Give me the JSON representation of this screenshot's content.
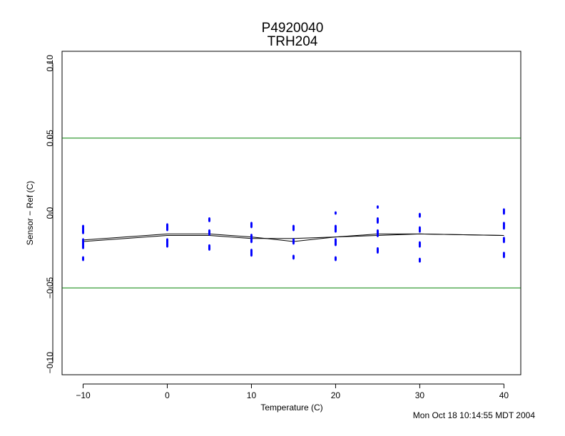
{
  "chart_data": {
    "type": "scatter",
    "title": "P4920040",
    "subtitle": "TRH204",
    "xlabel": "Temperature (C)",
    "ylabel": "Sensor − Ref (C)",
    "xlim": [
      -12.5,
      42
    ],
    "ylim": [
      -0.108,
      0.108
    ],
    "x_ticks": [
      -10,
      0,
      10,
      20,
      30,
      40
    ],
    "x_tick_labels": [
      "−10",
      "0",
      "10",
      "20",
      "30",
      "40"
    ],
    "y_ticks": [
      -0.1,
      -0.05,
      0.0,
      0.05,
      0.1
    ],
    "y_tick_labels": [
      "−0.10",
      "−0.05",
      "0.0",
      "0.05",
      "0.10"
    ],
    "grid": false,
    "reference_lines": [
      {
        "y": 0.05,
        "color": "#008000"
      },
      {
        "y": -0.05,
        "color": "#008000"
      }
    ],
    "points": [
      {
        "x": -10,
        "y": -0.009
      },
      {
        "x": -10,
        "y": -0.01
      },
      {
        "x": -10,
        "y": -0.011
      },
      {
        "x": -10,
        "y": -0.012
      },
      {
        "x": -10,
        "y": -0.013
      },
      {
        "x": -10,
        "y": -0.018
      },
      {
        "x": -10,
        "y": -0.019
      },
      {
        "x": -10,
        "y": -0.02
      },
      {
        "x": -10,
        "y": -0.021
      },
      {
        "x": -10,
        "y": -0.022
      },
      {
        "x": -10,
        "y": -0.023
      },
      {
        "x": -10,
        "y": -0.03
      },
      {
        "x": -10,
        "y": -0.031
      },
      {
        "x": 0,
        "y": -0.008
      },
      {
        "x": 0,
        "y": -0.009
      },
      {
        "x": 0,
        "y": -0.01
      },
      {
        "x": 0,
        "y": -0.011
      },
      {
        "x": 0,
        "y": -0.018
      },
      {
        "x": 0,
        "y": -0.019
      },
      {
        "x": 0,
        "y": -0.02
      },
      {
        "x": 0,
        "y": -0.021
      },
      {
        "x": 0,
        "y": -0.022
      },
      {
        "x": 5,
        "y": -0.004
      },
      {
        "x": 5,
        "y": -0.005
      },
      {
        "x": 5,
        "y": -0.012
      },
      {
        "x": 5,
        "y": -0.013
      },
      {
        "x": 5,
        "y": -0.014
      },
      {
        "x": 5,
        "y": -0.022
      },
      {
        "x": 5,
        "y": -0.023
      },
      {
        "x": 5,
        "y": -0.024
      },
      {
        "x": 10,
        "y": -0.007
      },
      {
        "x": 10,
        "y": -0.008
      },
      {
        "x": 10,
        "y": -0.009
      },
      {
        "x": 10,
        "y": -0.015
      },
      {
        "x": 10,
        "y": -0.016
      },
      {
        "x": 10,
        "y": -0.017
      },
      {
        "x": 10,
        "y": -0.018
      },
      {
        "x": 10,
        "y": -0.019
      },
      {
        "x": 10,
        "y": -0.025
      },
      {
        "x": 10,
        "y": -0.026
      },
      {
        "x": 10,
        "y": -0.027
      },
      {
        "x": 10,
        "y": -0.028
      },
      {
        "x": 15,
        "y": -0.009
      },
      {
        "x": 15,
        "y": -0.01
      },
      {
        "x": 15,
        "y": -0.011
      },
      {
        "x": 15,
        "y": -0.018
      },
      {
        "x": 15,
        "y": -0.019
      },
      {
        "x": 15,
        "y": -0.02
      },
      {
        "x": 15,
        "y": -0.029
      },
      {
        "x": 15,
        "y": -0.03
      },
      {
        "x": 20,
        "y": 0.0
      },
      {
        "x": 20,
        "y": -0.009
      },
      {
        "x": 20,
        "y": -0.01
      },
      {
        "x": 20,
        "y": -0.011
      },
      {
        "x": 20,
        "y": -0.012
      },
      {
        "x": 20,
        "y": -0.018
      },
      {
        "x": 20,
        "y": -0.019
      },
      {
        "x": 20,
        "y": -0.02
      },
      {
        "x": 20,
        "y": -0.021
      },
      {
        "x": 20,
        "y": -0.03
      },
      {
        "x": 20,
        "y": -0.031
      },
      {
        "x": 25,
        "y": 0.004
      },
      {
        "x": 25,
        "y": -0.004
      },
      {
        "x": 25,
        "y": -0.005
      },
      {
        "x": 25,
        "y": -0.006
      },
      {
        "x": 25,
        "y": -0.012
      },
      {
        "x": 25,
        "y": -0.013
      },
      {
        "x": 25,
        "y": -0.014
      },
      {
        "x": 25,
        "y": -0.015
      },
      {
        "x": 25,
        "y": -0.024
      },
      {
        "x": 25,
        "y": -0.025
      },
      {
        "x": 25,
        "y": -0.026
      },
      {
        "x": 30,
        "y": -0.001
      },
      {
        "x": 30,
        "y": -0.002
      },
      {
        "x": 30,
        "y": -0.01
      },
      {
        "x": 30,
        "y": -0.011
      },
      {
        "x": 30,
        "y": -0.012
      },
      {
        "x": 30,
        "y": -0.02
      },
      {
        "x": 30,
        "y": -0.021
      },
      {
        "x": 30,
        "y": -0.022
      },
      {
        "x": 30,
        "y": -0.031
      },
      {
        "x": 30,
        "y": -0.032
      },
      {
        "x": 40,
        "y": 0.002
      },
      {
        "x": 40,
        "y": 0.001
      },
      {
        "x": 40,
        "y": 0.0
      },
      {
        "x": 40,
        "y": -0.007
      },
      {
        "x": 40,
        "y": -0.008
      },
      {
        "x": 40,
        "y": -0.009
      },
      {
        "x": 40,
        "y": -0.01
      },
      {
        "x": 40,
        "y": -0.017
      },
      {
        "x": 40,
        "y": -0.018
      },
      {
        "x": 40,
        "y": -0.019
      },
      {
        "x": 40,
        "y": -0.027
      },
      {
        "x": 40,
        "y": -0.028
      },
      {
        "x": 40,
        "y": -0.029
      }
    ],
    "series": [
      {
        "x": [
          -10,
          0,
          5,
          10,
          15,
          20,
          25,
          30,
          40
        ],
        "y": [
          -0.019,
          -0.015,
          -0.015,
          -0.017,
          -0.017,
          -0.016,
          -0.014,
          -0.014,
          -0.015
        ]
      },
      {
        "x": [
          -10,
          0,
          5,
          10,
          15,
          20,
          25,
          30,
          40
        ],
        "y": [
          -0.018,
          -0.014,
          -0.014,
          -0.016,
          -0.019,
          -0.016,
          -0.015,
          -0.014,
          -0.015
        ]
      }
    ],
    "point_color": "#0000ff",
    "line_color": "#000000"
  },
  "timestamp": "Mon Oct 18 10:14:55 MDT 2004"
}
